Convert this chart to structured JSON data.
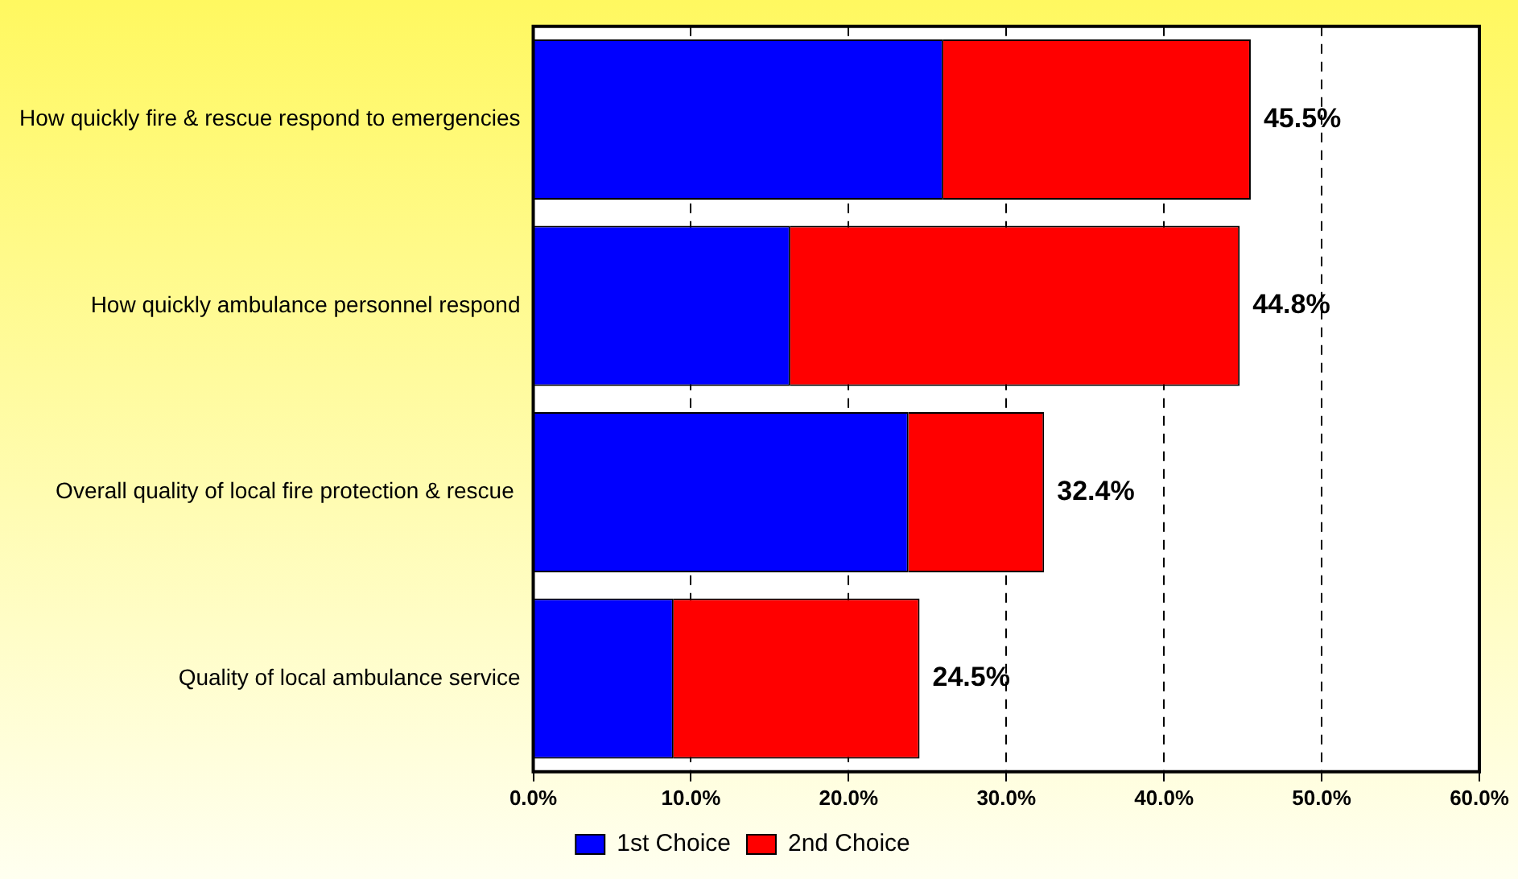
{
  "chart_data": {
    "type": "bar",
    "orientation": "horizontal",
    "stacked": true,
    "categories": [
      "How quickly fire & rescue respond to emergencies",
      "How quickly ambulance personnel respond",
      "Overall quality of local fire protection & rescue ",
      "Quality of local ambulance service"
    ],
    "series": [
      {
        "name": "1st Choice",
        "color": "#0000ff",
        "values": [
          26.0,
          16.3,
          23.8,
          8.9
        ]
      },
      {
        "name": "2nd Choice",
        "color": "#ff0000",
        "values": [
          19.5,
          28.5,
          8.6,
          15.6
        ]
      }
    ],
    "totals": [
      "45.5%",
      "44.8%",
      "32.4%",
      "24.5%"
    ],
    "xlim": [
      0,
      60
    ],
    "xticks": [
      {
        "value": 0,
        "label": "0.0%"
      },
      {
        "value": 10,
        "label": "10.0%"
      },
      {
        "value": 20,
        "label": "20.0%"
      },
      {
        "value": 30,
        "label": "30.0%"
      },
      {
        "value": 40,
        "label": "40.0%"
      },
      {
        "value": 50,
        "label": "50.0%"
      },
      {
        "value": 60,
        "label": "60.0%"
      }
    ],
    "grid": "x",
    "legend": "bottom"
  }
}
